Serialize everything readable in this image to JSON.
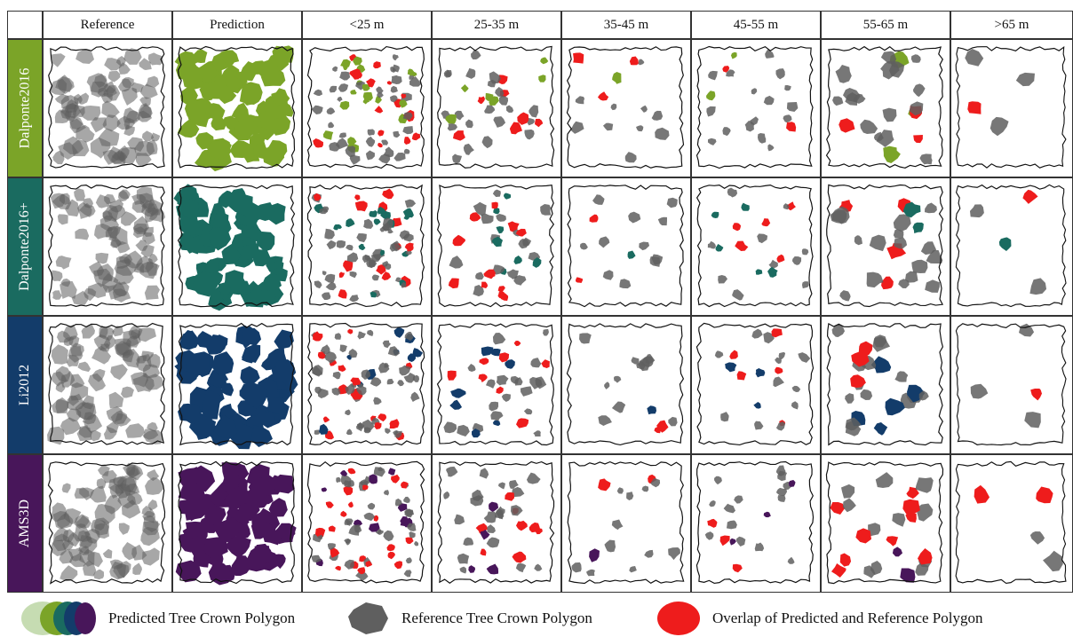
{
  "columns": [
    "Reference",
    "Prediction",
    "<25 m",
    "25-35 m",
    "35-45 m",
    "45-55 m",
    "55-65 m",
    ">65 m"
  ],
  "rows": [
    {
      "label": "Dalponte2016",
      "color": "#7ba428"
    },
    {
      "label": "Dalponte2016+",
      "color": "#1a6b60"
    },
    {
      "label": "Li2012",
      "color": "#133c6a"
    },
    {
      "label": "AMS3D",
      "color": "#48165a"
    }
  ],
  "colors": {
    "reference": "#5f5f5f",
    "overlap": "#ee1c1c",
    "legend_predicted_stack": [
      "#c6dcb2",
      "#7ba428",
      "#1a6b60",
      "#133c6a",
      "#48165a"
    ]
  },
  "legend": {
    "predicted": "Predicted Tree Crown Polygon",
    "reference": "Reference Tree Crown Polygon",
    "overlap": "Overlap of Predicted and Reference Polygon"
  }
}
